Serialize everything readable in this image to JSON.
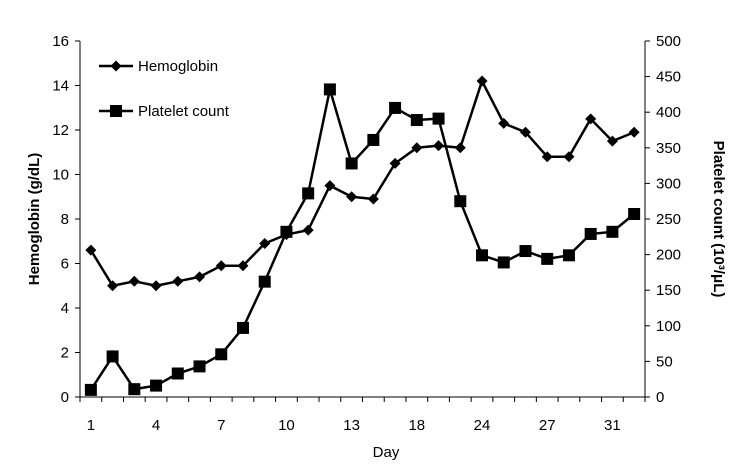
{
  "chart_data": {
    "type": "line",
    "xlabel": "Day",
    "x_tick_labels": [
      "1",
      "4",
      "7",
      "10",
      "13",
      "18",
      "24",
      "27",
      "31"
    ],
    "y_left": {
      "label": "Hemoglobin (g/dL)",
      "ylim": [
        0,
        16
      ],
      "ticks": [
        0,
        2,
        4,
        6,
        8,
        10,
        12,
        14,
        16
      ]
    },
    "y_right": {
      "label": "Platelet count (10³/μL)",
      "ylim": [
        0,
        500
      ],
      "ticks": [
        0,
        50,
        100,
        150,
        200,
        250,
        300,
        350,
        400,
        450,
        500
      ]
    },
    "legend_position": "top-left",
    "grid": false,
    "series": [
      {
        "name": "Hemoglobin",
        "axis": "left",
        "marker": "diamond",
        "values": [
          6.6,
          5.0,
          5.2,
          5.0,
          5.2,
          5.4,
          5.9,
          5.9,
          6.9,
          7.3,
          7.5,
          9.5,
          9.0,
          8.9,
          10.5,
          11.2,
          11.3,
          11.2,
          14.2,
          12.3,
          11.9,
          10.8,
          10.8,
          12.5,
          11.5,
          11.9
        ]
      },
      {
        "name": "Platelet count",
        "axis": "right",
        "marker": "square",
        "values": [
          10,
          57,
          11,
          16,
          33,
          43,
          60,
          97,
          162,
          232,
          286,
          432,
          328,
          361,
          406,
          389,
          391,
          275,
          199,
          189,
          205,
          194,
          199,
          229,
          232,
          257
        ]
      }
    ]
  }
}
